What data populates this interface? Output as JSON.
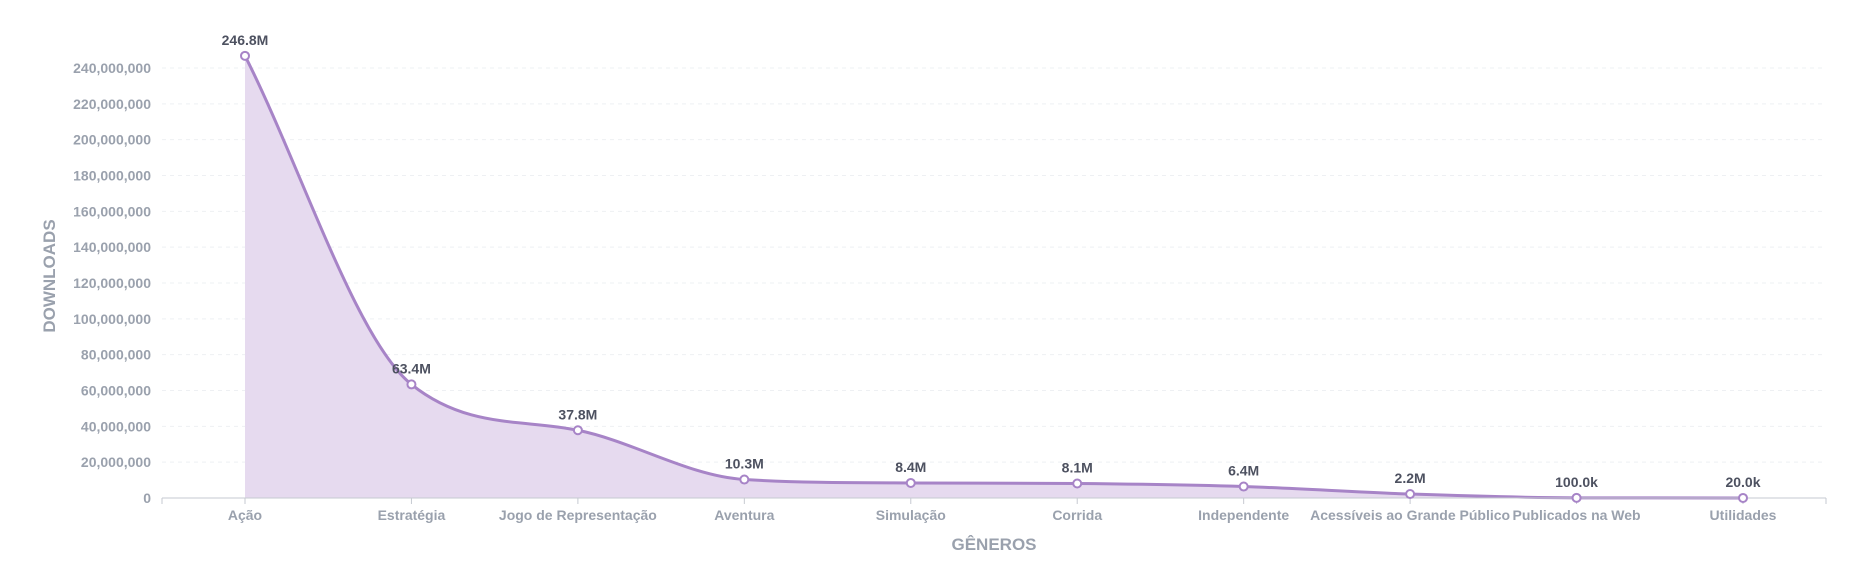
{
  "chart_data": {
    "type": "area",
    "title": "",
    "xlabel": "GÊNEROS",
    "ylabel": "DOWNLOADS",
    "categories": [
      "Ação",
      "Estratégia",
      "Jogo de Representação",
      "Aventura",
      "Simulação",
      "Corrida",
      "Independente",
      "Acessíveis ao Grande Público",
      "Publicados na Web",
      "Utilidades"
    ],
    "series": [
      {
        "values": [
          246800000,
          63400000,
          37800000,
          10300000,
          8400000,
          8100000,
          6400000,
          2200000,
          100000,
          20000
        ],
        "labels": [
          "246.8M",
          "63.4M",
          "37.8M",
          "10.3M",
          "8.4M",
          "8.1M",
          "6.4M",
          "2.2M",
          "100.0k",
          "20.0k"
        ]
      }
    ],
    "yticks": [
      "0",
      "20,000,000",
      "40,000,000",
      "60,000,000",
      "80,000,000",
      "100,000,000",
      "120,000,000",
      "140,000,000",
      "160,000,000",
      "180,000,000",
      "200,000,000",
      "220,000,000",
      "240,000,000"
    ],
    "ylim": [
      0,
      240000000
    ],
    "grid": true,
    "legend": "none",
    "colors": {
      "line": "#a784c7",
      "fill": "#e6daef"
    }
  }
}
